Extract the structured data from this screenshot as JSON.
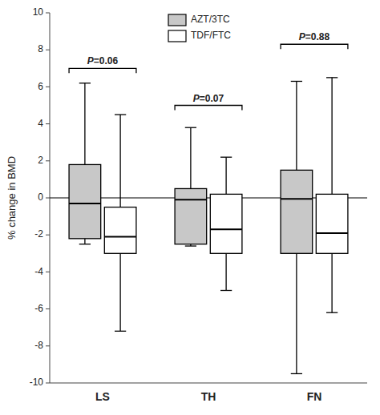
{
  "chart_data": {
    "type": "box",
    "ylabel": "% change in BMD",
    "categories": [
      "LS",
      "TH",
      "FN"
    ],
    "series": [
      {
        "name": "AZT/3TC",
        "color": "#c8c8c8",
        "values": [
          {
            "whisker_lo": -2.5,
            "q1": -2.2,
            "median": -0.3,
            "q3": 1.8,
            "whisker_hi": 6.2
          },
          {
            "whisker_lo": -2.6,
            "q1": -2.5,
            "median": -0.1,
            "q3": 0.5,
            "whisker_hi": 3.8
          },
          {
            "whisker_lo": -9.5,
            "q1": -3.0,
            "median": -0.05,
            "q3": 1.5,
            "whisker_hi": 6.3
          }
        ]
      },
      {
        "name": "TDF/FTC",
        "color": "#ffffff",
        "values": [
          {
            "whisker_lo": -7.2,
            "q1": -3.0,
            "median": -2.1,
            "q3": -0.5,
            "whisker_hi": 4.5
          },
          {
            "whisker_lo": -5.0,
            "q1": -3.0,
            "median": -1.7,
            "q3": 0.2,
            "whisker_hi": 2.2
          },
          {
            "whisker_lo": -6.2,
            "q1": -3.0,
            "median": -1.9,
            "q3": 0.2,
            "whisker_hi": 6.5
          }
        ]
      }
    ],
    "annotations": [
      {
        "text": "P=0.06",
        "category": "LS",
        "y": 7.0
      },
      {
        "text": "P=0.07",
        "category": "TH",
        "y": 5.0
      },
      {
        "text": "P=0.88",
        "category": "FN",
        "y": 8.3
      }
    ],
    "hline": 0,
    "ylim": [
      -10,
      10
    ],
    "yticks": [
      -10,
      -8,
      -6,
      -4,
      -2,
      0,
      2,
      4,
      6,
      8,
      10
    ],
    "legend": "upper center"
  }
}
